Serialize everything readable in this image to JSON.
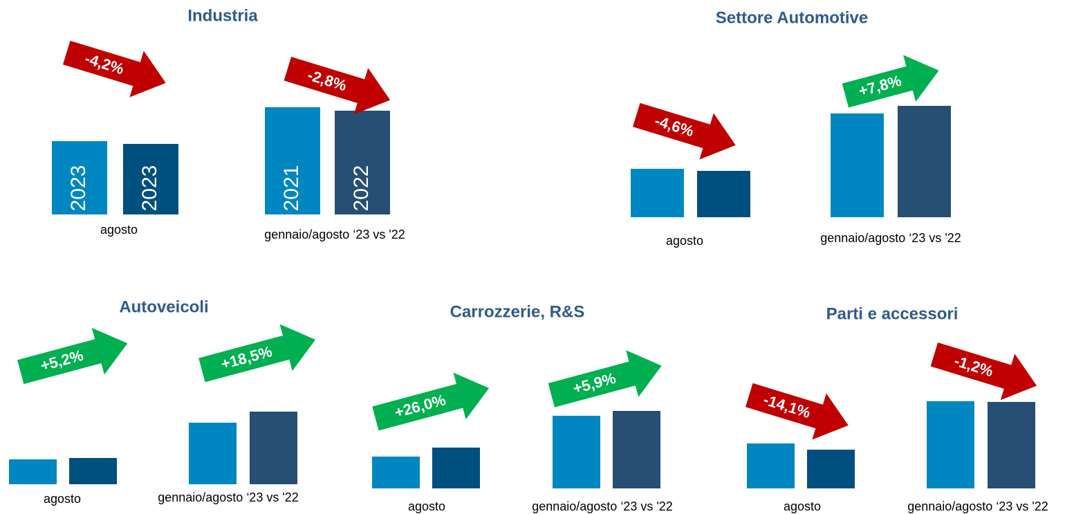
{
  "chart_data": [
    {
      "type": "bar",
      "title": "Industria",
      "ylim": [
        0,
        200
      ],
      "groups": [
        {
          "category": "agosto",
          "values": [
            106,
            102
          ],
          "colors": [
            "#0087c1",
            "#00507f"
          ],
          "bar_labels": [
            "2023",
            "2023"
          ],
          "change": {
            "value": -4.2,
            "label": "-4,2%"
          },
          "change_color": "#c00000"
        },
        {
          "category": "gennaio/agosto ‘23 vs '22",
          "values": [
            155,
            150
          ],
          "colors": [
            "#0087c1",
            "#264f73"
          ],
          "bar_labels": [
            "2021",
            "2022"
          ],
          "change": {
            "value": -2.8,
            "label": "-2,8%"
          },
          "change_color": "#c00000"
        }
      ]
    },
    {
      "type": "bar",
      "title": "Settore Automotive",
      "ylim": [
        0,
        200
      ],
      "groups": [
        {
          "category": "agosto",
          "values": [
            70,
            67
          ],
          "colors": [
            "#0087c1",
            "#00507f"
          ],
          "change": {
            "value": -4.6,
            "label": "-4,6%"
          },
          "change_color": "#c00000"
        },
        {
          "category": "gennaio/agosto ‘23 vs '22",
          "values": [
            150,
            161
          ],
          "colors": [
            "#0087c1",
            "#264f73"
          ],
          "change": {
            "value": 7.8,
            "label": "+7,8%"
          },
          "change_color": "#00b050"
        }
      ]
    },
    {
      "type": "bar",
      "title": "Autoveicoli",
      "ylim": [
        0,
        200
      ],
      "groups": [
        {
          "category": "agosto",
          "values": [
            36,
            38
          ],
          "colors": [
            "#0087c1",
            "#00507f"
          ],
          "change": {
            "value": 5.2,
            "label": "+5,2%"
          },
          "change_color": "#00b050"
        },
        {
          "category": "gennaio/agosto ‘23 vs '22",
          "values": [
            89,
            105
          ],
          "colors": [
            "#0087c1",
            "#264f73"
          ],
          "change": {
            "value": 18.5,
            "label": "+18,5%"
          },
          "change_color": "#00b050"
        }
      ]
    },
    {
      "type": "bar",
      "title": "Carrozzerie, R&S",
      "ylim": [
        0,
        200
      ],
      "groups": [
        {
          "category": "agosto",
          "values": [
            46,
            59
          ],
          "colors": [
            "#0087c1",
            "#00507f"
          ],
          "change": {
            "value": 26.0,
            "label": "+26,0%"
          },
          "change_color": "#00b050"
        },
        {
          "category": "gennaio/agosto ‘23 vs '22",
          "values": [
            105,
            112
          ],
          "colors": [
            "#0087c1",
            "#264f73"
          ],
          "change": {
            "value": 5.9,
            "label": "+5,9%"
          },
          "change_color": "#00b050"
        }
      ]
    },
    {
      "type": "bar",
      "title": "Parti e accessori",
      "ylim": [
        0,
        200
      ],
      "groups": [
        {
          "category": "agosto",
          "values": [
            65,
            56
          ],
          "colors": [
            "#0087c1",
            "#00507f"
          ],
          "change": {
            "value": -14.1,
            "label": "-14,1%"
          },
          "change_color": "#c00000"
        },
        {
          "category": "gennaio/agosto ‘23 vs '22",
          "values": [
            126,
            125
          ],
          "colors": [
            "#0087c1",
            "#264f73"
          ],
          "change": {
            "value": -1.2,
            "label": "-1,2%"
          },
          "change_color": "#c00000"
        }
      ]
    }
  ]
}
